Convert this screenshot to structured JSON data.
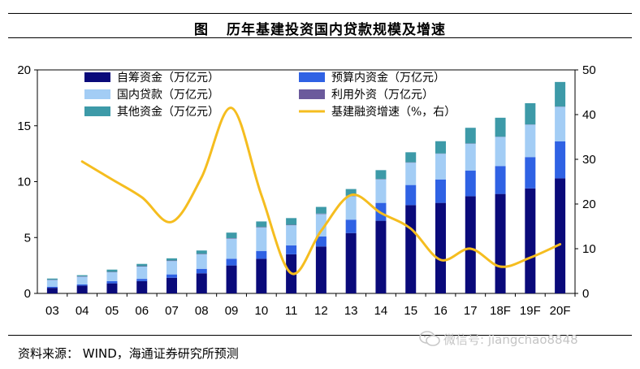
{
  "header": {
    "figure_label": "图",
    "title": "历年基建投资国内贷款规模及增速"
  },
  "footer": {
    "source": "资料来源： WIND，海通证券研究所预测",
    "watermark": "微信号: jiangchao8848"
  },
  "colors": {
    "self_funded": "#0a0a7a",
    "budget": "#2f62e4",
    "domestic_loan": "#a3cdf5",
    "foreign": "#6b5a9c",
    "other": "#3d9aa8",
    "growth_line": "#f5bd1f"
  },
  "chart_data": {
    "type": "bar",
    "stacked": true,
    "title": "历年基建投资国内贷款规模及增速",
    "categories": [
      "03",
      "04",
      "05",
      "06",
      "07",
      "08",
      "09",
      "10",
      "11",
      "12",
      "13",
      "14",
      "15",
      "16",
      "17",
      "18F",
      "19F",
      "20F"
    ],
    "y_left": {
      "ylim": [
        0,
        20
      ],
      "ticks": [
        "0",
        "5",
        "10",
        "15",
        "20"
      ]
    },
    "y_right": {
      "ylim": [
        0,
        50
      ],
      "ticks": [
        "0",
        "10",
        "20",
        "30",
        "40",
        "50"
      ]
    },
    "series": [
      {
        "name": "自筹资金（万亿元）",
        "key": "self_funded",
        "axis": "left",
        "values": [
          0.5,
          0.7,
          0.9,
          1.1,
          1.4,
          1.8,
          2.5,
          3.1,
          3.5,
          4.2,
          5.4,
          6.5,
          7.9,
          8.1,
          8.7,
          8.9,
          9.4,
          10.3
        ]
      },
      {
        "name": "预算内资金（万亿元）",
        "key": "budget",
        "axis": "left",
        "values": [
          0.1,
          0.1,
          0.2,
          0.2,
          0.3,
          0.4,
          0.6,
          0.7,
          0.8,
          0.9,
          1.2,
          1.6,
          1.8,
          2.1,
          2.3,
          2.5,
          2.8,
          3.3
        ]
      },
      {
        "name": "国内贷款（万亿元）",
        "key": "domestic_loan",
        "axis": "left",
        "values": [
          0.6,
          0.7,
          0.8,
          1.1,
          1.2,
          1.3,
          1.8,
          2.1,
          1.8,
          2.0,
          2.1,
          2.1,
          2.0,
          2.3,
          2.4,
          2.6,
          2.9,
          3.1
        ]
      },
      {
        "name": "利用外资（万亿元）",
        "key": "foreign",
        "axis": "left",
        "values": [
          0.03,
          0.03,
          0.03,
          0.04,
          0.04,
          0.04,
          0.04,
          0.04,
          0.04,
          0.04,
          0.04,
          0.03,
          0.03,
          0.02,
          0.02,
          0.02,
          0.02,
          0.02
        ]
      },
      {
        "name": "其他资金（万亿元）",
        "key": "other",
        "axis": "left",
        "values": [
          0.1,
          0.1,
          0.2,
          0.2,
          0.2,
          0.3,
          0.5,
          0.5,
          0.6,
          0.6,
          0.6,
          0.8,
          0.9,
          1.1,
          1.4,
          1.7,
          1.9,
          2.2
        ]
      },
      {
        "name": "基建融资增速（%，右）",
        "key": "growth_line",
        "axis": "right",
        "type": "line",
        "values": [
          null,
          29.5,
          25.5,
          21.5,
          16,
          26,
          41.5,
          22,
          4.5,
          14,
          22,
          18,
          14.5,
          7.5,
          10,
          6,
          8,
          11
        ]
      }
    ],
    "legend": [
      [
        "自筹资金（万亿元）",
        "预算内资金（万亿元）"
      ],
      [
        "国内贷款（万亿元）",
        "利用外资（万亿元）"
      ],
      [
        "其他资金（万亿元）",
        "基建融资增速（%，右）"
      ]
    ],
    "legend_position": "top-left"
  }
}
